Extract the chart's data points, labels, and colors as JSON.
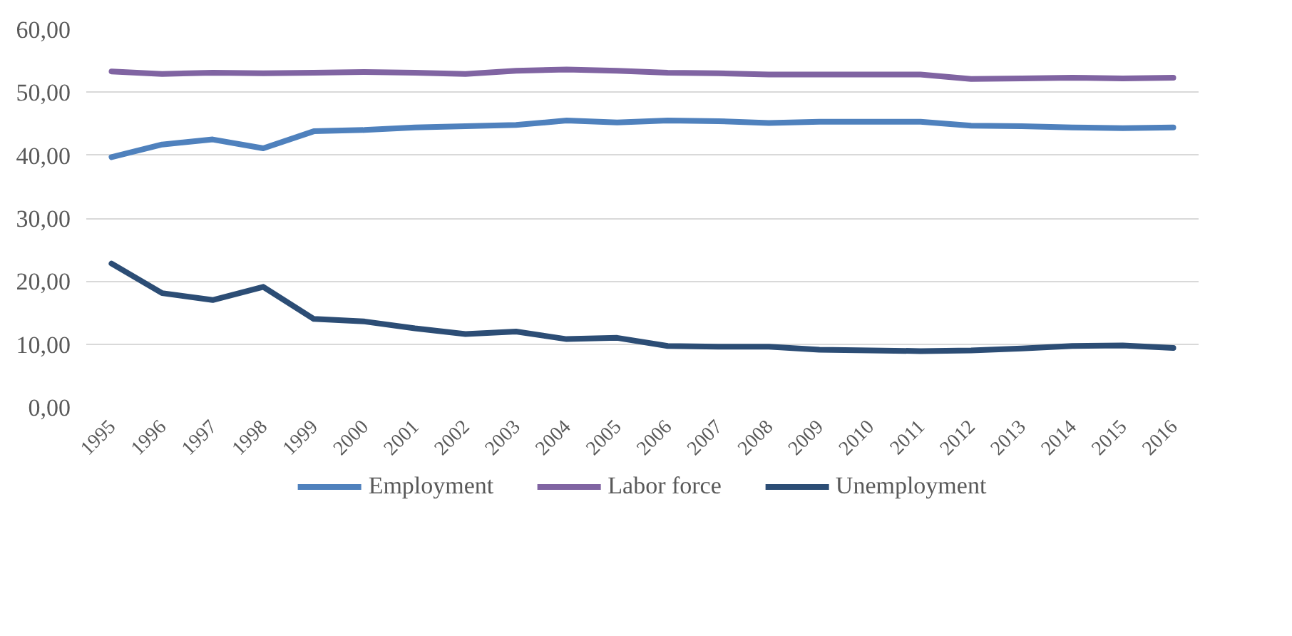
{
  "chart_data": {
    "type": "line",
    "categories": [
      "1995",
      "1996",
      "1997",
      "1998",
      "1999",
      "2000",
      "2001",
      "2002",
      "2003",
      "2004",
      "2005",
      "2006",
      "2007",
      "2008",
      "2009",
      "2010",
      "2011",
      "2012",
      "2013",
      "2014",
      "2015",
      "2016"
    ],
    "series": [
      {
        "name": "Employment",
        "color": "#4f81bd",
        "values": [
          39.7,
          41.7,
          42.5,
          41.1,
          43.8,
          44.0,
          44.4,
          44.6,
          44.8,
          45.5,
          45.2,
          45.5,
          45.4,
          45.1,
          45.3,
          45.3,
          45.3,
          44.7,
          44.6,
          44.4,
          44.3,
          44.4
        ]
      },
      {
        "name": "Labor force",
        "color": "#8064a2",
        "values": [
          53.3,
          52.9,
          53.1,
          53.0,
          53.1,
          53.2,
          53.1,
          52.9,
          53.4,
          53.6,
          53.4,
          53.1,
          53.0,
          52.8,
          52.8,
          52.8,
          52.8,
          52.1,
          52.2,
          52.3,
          52.2,
          52.3
        ]
      },
      {
        "name": "Unemployment",
        "color": "#2c4d75",
        "values": [
          22.8,
          18.1,
          17.0,
          19.1,
          14.0,
          13.6,
          12.5,
          11.6,
          12.0,
          10.8,
          11.0,
          9.7,
          9.6,
          9.6,
          9.1,
          9.0,
          8.9,
          9.0,
          9.3,
          9.7,
          9.8,
          9.4
        ]
      }
    ],
    "ylim": [
      0,
      60
    ],
    "yticks": [
      {
        "value": 0,
        "label": "0,00"
      },
      {
        "value": 10,
        "label": "10,00"
      },
      {
        "value": 20,
        "label": "20,00"
      },
      {
        "value": 30,
        "label": "30,00"
      },
      {
        "value": 40,
        "label": "40,00"
      },
      {
        "value": 50,
        "label": "50,00"
      },
      {
        "value": 60,
        "label": "60,00"
      }
    ],
    "grid": "y",
    "legend": "bottom",
    "line_style": "solid"
  }
}
